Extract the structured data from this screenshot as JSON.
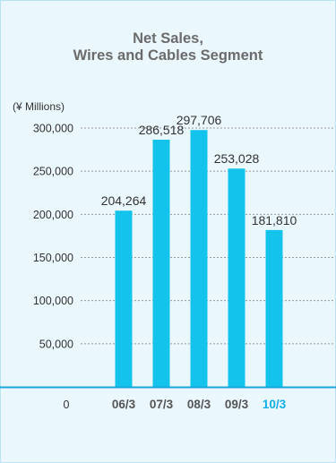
{
  "title_lines": [
    "Net Sales,",
    "Wires and Cables Segment"
  ],
  "chart_data": {
    "type": "bar",
    "title": "Net Sales, Wires and Cables Segment",
    "ylabel": "(¥ Millions)",
    "categories": [
      "06/3",
      "07/3",
      "08/3",
      "09/3",
      "10/3"
    ],
    "values": [
      204264,
      286518,
      297706,
      253028,
      181810
    ],
    "value_labels": [
      "204,264",
      "286,518",
      "297,706",
      "253,028",
      "181,810"
    ],
    "ylim": [
      0,
      300000
    ],
    "yticks": [
      0,
      50000,
      100000,
      150000,
      200000,
      250000,
      300000
    ],
    "ytick_labels": [
      "0",
      "50,000",
      "100,000",
      "150,000",
      "200,000",
      "250,000",
      "300,000"
    ],
    "highlighted_category": "10/3",
    "grid": true,
    "colors": {
      "bar": "#14c3ec",
      "highlight_label": "#14aee8",
      "label": "#333333",
      "axis": "#1aa6dc",
      "grid": "#999999",
      "background": "#eaf7fd"
    }
  }
}
